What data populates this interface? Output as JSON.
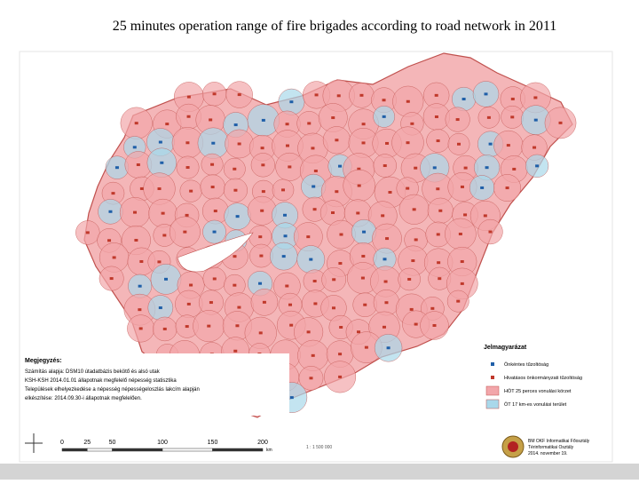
{
  "title": "25 minutes operation range of fire brigades according to road network in 2011",
  "legend": {
    "title": "Jelmagyarázat",
    "items": [
      "Önkéntes tűzoltóság",
      "Hivatásos önkormányzati tűzoltóság",
      "HÖT 25 perces vonulási körzet",
      "ÖT 17 km-es vonulási terület"
    ]
  },
  "note": {
    "title": "Megjegyzés:",
    "lines": [
      "Számítás alapja: DSM10 útadatbázis bekötő és alsó utak",
      "KSH-KSH 2014.01.01 állapotnak megfelelő népesség statisztika",
      "Települések elhelyezkedése a népesség népességeloszlás lakcím alapján",
      "elkészítése: 2014.09.30-i állapotnak megfelelően."
    ]
  },
  "scale": {
    "ticks": [
      0,
      25,
      50,
      100,
      150,
      200
    ],
    "unit": "km",
    "ratio": "1 : 1 500 000"
  },
  "credit": [
    "BM OKF Informatikai Főosztály",
    "Térinformatikai Osztály",
    "2014. november 19."
  ]
}
